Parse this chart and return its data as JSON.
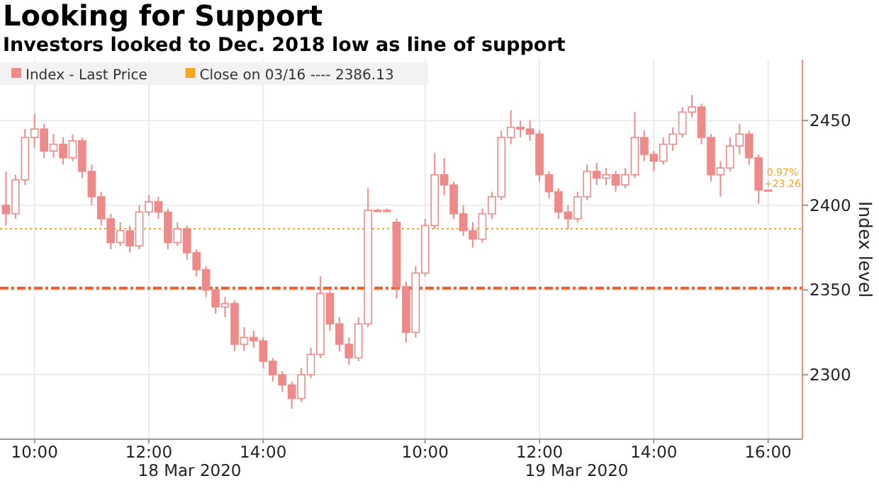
{
  "chart_data": {
    "type": "candlestick",
    "title": "Looking for Support",
    "subtitle": "Investors looked to Dec. 2018 low as line of support",
    "ylabel": "Index level",
    "legend": "top left",
    "grid": true,
    "categories": [
      null,
      null,
      null,
      "10:00",
      null,
      null,
      null,
      null,
      null,
      null,
      null,
      null,
      null,
      null,
      null,
      "12:00",
      null,
      null,
      null,
      null,
      null,
      null,
      null,
      null,
      null,
      null,
      null,
      "14:00",
      null,
      null,
      null,
      null,
      null,
      null,
      null,
      null,
      null,
      null,
      null,
      null,
      null,
      null,
      null,
      null,
      "10:00",
      null,
      null,
      null,
      null,
      null,
      null,
      null,
      null,
      null,
      null,
      null,
      "12:00",
      null,
      null,
      null,
      null,
      null,
      null,
      null,
      null,
      null,
      null,
      null,
      "14:00",
      null,
      null,
      null,
      null,
      null,
      null,
      null,
      null,
      null,
      null,
      null,
      "16:00"
    ],
    "series": [
      {
        "name": "Index - Last Price",
        "color": "#ef8a8a",
        "ohlc": [
          [
            2400,
            2420,
            2388,
            2395
          ],
          [
            2395,
            2418,
            2392,
            2415
          ],
          [
            2415,
            2445,
            2412,
            2440
          ],
          [
            2440,
            2454,
            2434,
            2445
          ],
          [
            2445,
            2448,
            2428,
            2432
          ],
          [
            2432,
            2442,
            2428,
            2436
          ],
          [
            2436,
            2440,
            2424,
            2428
          ],
          [
            2428,
            2442,
            2426,
            2438
          ],
          [
            2438,
            2440,
            2416,
            2420
          ],
          [
            2420,
            2424,
            2400,
            2405
          ],
          [
            2405,
            2408,
            2388,
            2392
          ],
          [
            2392,
            2395,
            2374,
            2378
          ],
          [
            2378,
            2390,
            2376,
            2385
          ],
          [
            2385,
            2388,
            2372,
            2376
          ],
          [
            2376,
            2400,
            2374,
            2396
          ],
          [
            2396,
            2406,
            2394,
            2402
          ],
          [
            2402,
            2405,
            2392,
            2396
          ],
          [
            2396,
            2398,
            2374,
            2378
          ],
          [
            2378,
            2390,
            2376,
            2386
          ],
          [
            2386,
            2388,
            2368,
            2372
          ],
          [
            2372,
            2374,
            2358,
            2362
          ],
          [
            2362,
            2364,
            2346,
            2350
          ],
          [
            2350,
            2352,
            2336,
            2340
          ],
          [
            2340,
            2346,
            2334,
            2342
          ],
          [
            2342,
            2344,
            2314,
            2318
          ],
          [
            2318,
            2328,
            2314,
            2322
          ],
          [
            2322,
            2326,
            2316,
            2320
          ],
          [
            2320,
            2322,
            2304,
            2308
          ],
          [
            2308,
            2310,
            2296,
            2300
          ],
          [
            2300,
            2302,
            2290,
            2294
          ],
          [
            2294,
            2296,
            2280,
            2286
          ],
          [
            2286,
            2304,
            2284,
            2300
          ],
          [
            2300,
            2316,
            2298,
            2312
          ],
          [
            2312,
            2358,
            2310,
            2348
          ],
          [
            2348,
            2350,
            2326,
            2330
          ],
          [
            2330,
            2334,
            2314,
            2318
          ],
          [
            2318,
            2322,
            2306,
            2310
          ],
          [
            2310,
            2334,
            2308,
            2330
          ],
          [
            2330,
            2410,
            2328,
            2397
          ],
          [
            2397,
            2398,
            2396,
            2397
          ],
          [
            2397,
            2398,
            2396,
            2397
          ],
          [
            2390,
            2392,
            2345,
            2352
          ],
          [
            2352,
            2355,
            2319,
            2325
          ],
          [
            2325,
            2364,
            2322,
            2360
          ],
          [
            2360,
            2392,
            2358,
            2388
          ],
          [
            2388,
            2431,
            2386,
            2418
          ],
          [
            2418,
            2428,
            2406,
            2412
          ],
          [
            2412,
            2414,
            2392,
            2395
          ],
          [
            2395,
            2400,
            2382,
            2385
          ],
          [
            2385,
            2390,
            2375,
            2380
          ],
          [
            2380,
            2398,
            2378,
            2395
          ],
          [
            2395,
            2408,
            2392,
            2405
          ],
          [
            2405,
            2444,
            2403,
            2440
          ],
          [
            2440,
            2456,
            2436,
            2446
          ],
          [
            2446,
            2450,
            2440,
            2445
          ],
          [
            2445,
            2450,
            2438,
            2442
          ],
          [
            2442,
            2444,
            2414,
            2418
          ],
          [
            2418,
            2420,
            2404,
            2408
          ],
          [
            2408,
            2410,
            2392,
            2396
          ],
          [
            2396,
            2400,
            2386,
            2392
          ],
          [
            2392,
            2408,
            2390,
            2405
          ],
          [
            2405,
            2424,
            2403,
            2420
          ],
          [
            2420,
            2425,
            2412,
            2416
          ],
          [
            2416,
            2422,
            2412,
            2418
          ],
          [
            2418,
            2420,
            2408,
            2412
          ],
          [
            2412,
            2422,
            2410,
            2418
          ],
          [
            2418,
            2455,
            2416,
            2440
          ],
          [
            2440,
            2444,
            2426,
            2430
          ],
          [
            2430,
            2432,
            2420,
            2426
          ],
          [
            2426,
            2440,
            2424,
            2436
          ],
          [
            2436,
            2446,
            2432,
            2442
          ],
          [
            2442,
            2458,
            2440,
            2455
          ],
          [
            2455,
            2465,
            2452,
            2458
          ],
          [
            2458,
            2460,
            2436,
            2440
          ],
          [
            2440,
            2442,
            2414,
            2418
          ],
          [
            2418,
            2426,
            2405,
            2422
          ],
          [
            2422,
            2440,
            2420,
            2435
          ],
          [
            2435,
            2448,
            2430,
            2442
          ],
          [
            2442,
            2444,
            2424,
            2428
          ],
          [
            2428,
            2430,
            2401,
            2409
          ],
          [
            2409,
            2409,
            2409,
            2409
          ]
        ]
      }
    ],
    "ylim": [
      2262,
      2486
    ],
    "yticks": [
      2300,
      2350,
      2400,
      2450
    ],
    "ref_lines": [
      {
        "axis": "y",
        "value": 2386.13,
        "label": "Close on 03/16 ---- 2386.13",
        "color": "#f5a623",
        "line_style": "dotted"
      },
      {
        "axis": "y",
        "value": 2351.1,
        "color": "#e8602c",
        "line_style": "dashed"
      }
    ],
    "annotations": [
      "18 Mar 2020",
      "19 Mar 2020",
      "0.97%",
      "+23.26"
    ]
  }
}
